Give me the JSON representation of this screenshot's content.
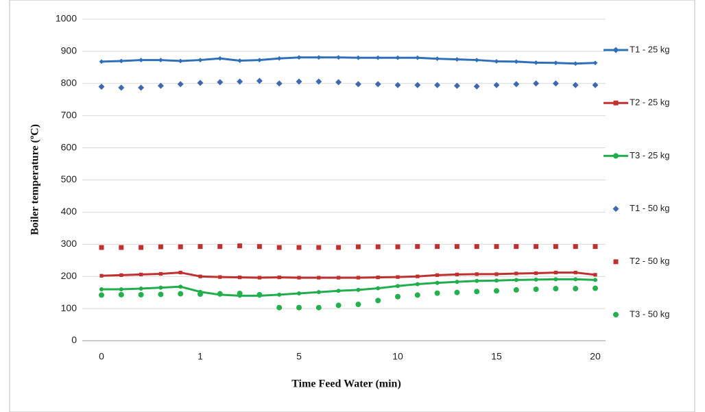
{
  "chart_data": {
    "type": "line",
    "y_label": "Boiler temperature (ºC)",
    "x_label": "Time Feed Water  (min)",
    "categories": [
      "0",
      null,
      null,
      null,
      null,
      "1",
      null,
      null,
      null,
      null,
      "5",
      null,
      null,
      null,
      null,
      "10",
      null,
      null,
      null,
      null,
      "15",
      null,
      null,
      null,
      null,
      "20"
    ],
    "ylim": [
      0,
      1000
    ],
    "yticks": [
      0,
      100,
      200,
      300,
      400,
      500,
      600,
      700,
      800,
      900,
      1000
    ],
    "grid": true,
    "legend": "right",
    "series": [
      {
        "name": "T1 - 25 kg",
        "color": "#2e6fba",
        "line": true,
        "marker": "diamond",
        "values": [
          868,
          870,
          873,
          873,
          870,
          873,
          878,
          871,
          873,
          878,
          881,
          881,
          881,
          880,
          880,
          880,
          880,
          877,
          875,
          873,
          869,
          868,
          865,
          864,
          862,
          864
        ]
      },
      {
        "name": "T2 - 25 kg",
        "color": "#c0302e",
        "line": true,
        "marker": "square",
        "values": [
          202,
          204,
          206,
          208,
          212,
          200,
          198,
          197,
          196,
          197,
          196,
          196,
          196,
          196,
          197,
          198,
          200,
          204,
          206,
          207,
          207,
          209,
          210,
          212,
          212,
          205
        ]
      },
      {
        "name": "T3 - 25 kg",
        "color": "#1fae4b",
        "line": true,
        "marker": "circle",
        "values": [
          160,
          160,
          162,
          165,
          168,
          152,
          143,
          140,
          140,
          143,
          147,
          151,
          155,
          158,
          163,
          170,
          176,
          180,
          183,
          186,
          187,
          189,
          190,
          191,
          191,
          189
        ]
      },
      {
        "name": "T1 - 50 kg",
        "color": "#3f68b0",
        "line": false,
        "marker": "diamond",
        "values": [
          790,
          787,
          787,
          793,
          798,
          802,
          804,
          806,
          808,
          800,
          806,
          806,
          804,
          798,
          798,
          795,
          795,
          795,
          793,
          791,
          795,
          798,
          800,
          800,
          795,
          795
        ]
      },
      {
        "name": "T2 - 50 kg",
        "color": "#c0302e",
        "line": false,
        "marker": "square",
        "values": [
          290,
          290,
          290,
          292,
          292,
          293,
          293,
          295,
          293,
          290,
          290,
          290,
          290,
          292,
          292,
          292,
          293,
          293,
          293,
          293,
          293,
          293,
          293,
          293,
          293,
          293
        ]
      },
      {
        "name": "T3 - 50 kg",
        "color": "#22b14c",
        "line": false,
        "marker": "circle",
        "values": [
          142,
          143,
          143,
          144,
          146,
          145,
          146,
          147,
          143,
          103,
          103,
          103,
          110,
          113,
          125,
          137,
          142,
          148,
          150,
          153,
          155,
          158,
          160,
          162,
          162,
          163
        ]
      }
    ]
  }
}
